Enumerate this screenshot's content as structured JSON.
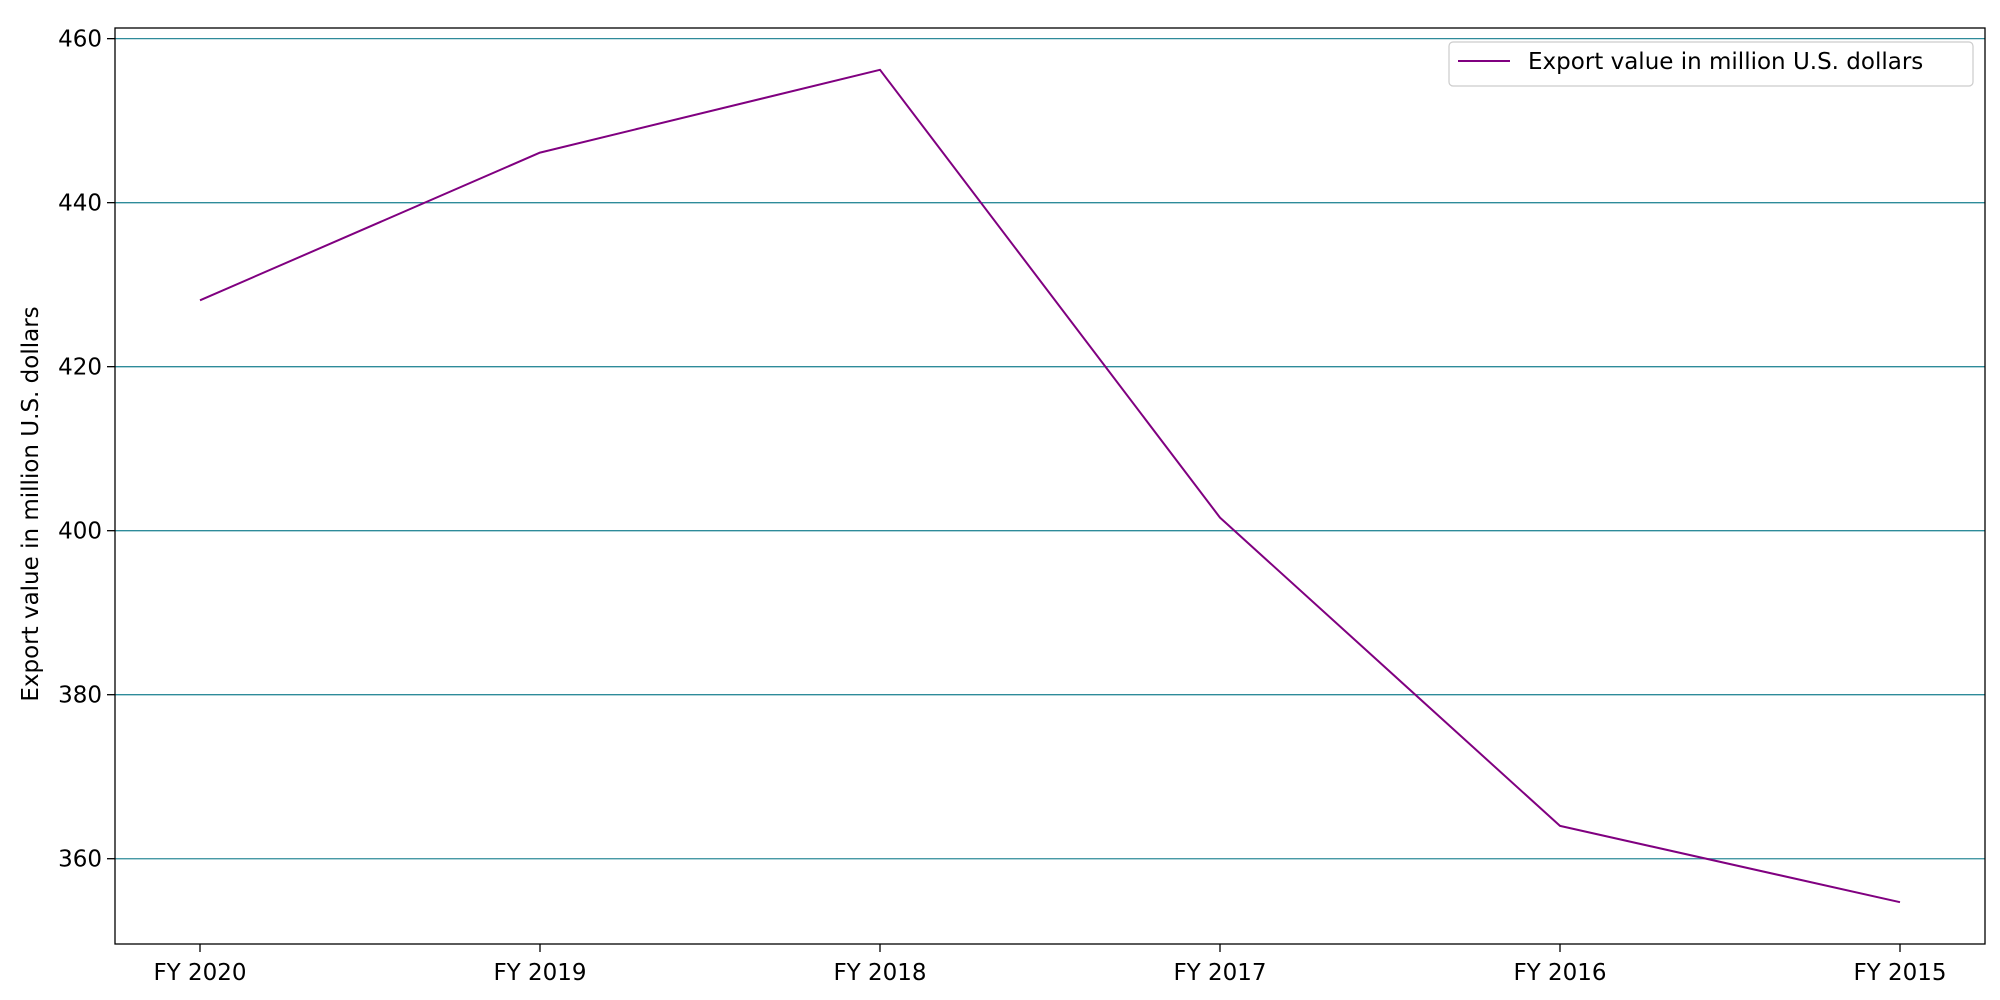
{
  "chart_data": {
    "type": "line",
    "title": "",
    "xlabel": "",
    "ylabel": "Export value in million U.S. dollars",
    "categories": [
      "FY 2020",
      "FY 2019",
      "FY 2018",
      "FY 2017",
      "FY 2016",
      "FY 2015"
    ],
    "series": [
      {
        "name": "Export value in million U.S. dollars",
        "color": "#800080",
        "values": [
          428.1,
          446.1,
          456.2,
          401.6,
          364.0,
          354.7
        ]
      }
    ],
    "ylim": [
      349.6,
      461.3
    ],
    "yticks": [
      360,
      380,
      400,
      420,
      440,
      460
    ],
    "grid": "horizontal",
    "grid_color": "#2e8b9a",
    "legend_position": "top-right"
  }
}
